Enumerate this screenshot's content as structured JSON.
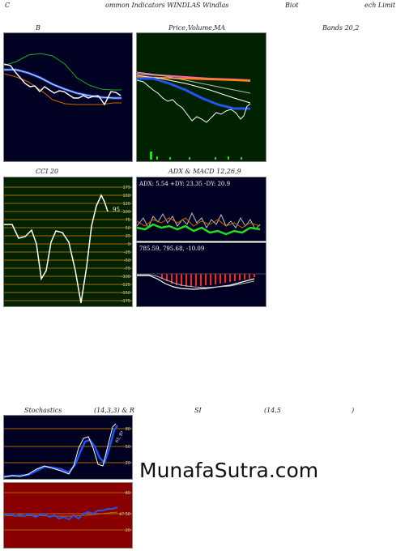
{
  "header": {
    "c": "C",
    "title": "ommon  Indicators WINDLAS Windlas",
    "biot": "Biot",
    "limit": "ech Limit"
  },
  "row1": {
    "b_label": "B",
    "price_label": "Price,",
    "volume_label": "Volume,",
    "ma_label": "MA",
    "bands_label": "Bands 20,2"
  },
  "row2": {
    "cci_label": "CCI 20",
    "adx_macd_label": "ADX  & MACD 12,26,9",
    "cci_value": "95",
    "cci_ticks": [
      "175",
      "150",
      "125",
      "100",
      "75",
      "50",
      "25",
      "0",
      "-25",
      "-50",
      "-75",
      "-100",
      "-125",
      "-150",
      "-175"
    ],
    "adx_text": "ADX: 5.54   +DY: 23.35 -DY: 20.9",
    "macd_text": "785.59,  795.68,  -10.09"
  },
  "row3": {
    "stoch_label": "Stochastics",
    "stoch_params": "(14,3,3) & R",
    "si_label": "SI",
    "rsi_params": "(14,5",
    "paren": ")",
    "stoch_ticks": [
      "80",
      "50",
      "20"
    ],
    "stoch_value": "65, 8?",
    "rsi_ticks": [
      "80",
      "50",
      "20"
    ],
    "rsi_value": "47"
  },
  "watermark": "MunafaSutra.com",
  "colors": {
    "navy": "#000022",
    "green_panel": "#002200",
    "red_panel": "#880000",
    "blue_line": "#2255ee",
    "orange_line": "#cc6600"
  }
}
